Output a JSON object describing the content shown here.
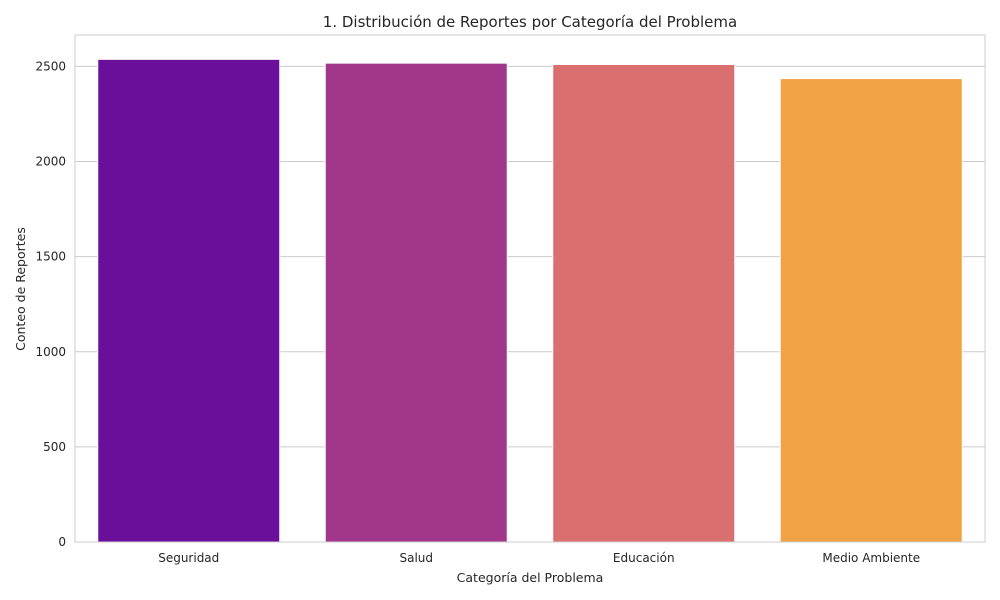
{
  "chart_data": {
    "type": "bar",
    "title": "1. Distribución de Reportes por Categoría del Problema",
    "xlabel": "Categoría del Problema",
    "ylabel": "Conteo de Reportes",
    "categories": [
      "Seguridad",
      "Salud",
      "Educación",
      "Medio Ambiente"
    ],
    "values": [
      2537,
      2517,
      2510,
      2436
    ],
    "colors": [
      "#6a0f9a",
      "#a2368a",
      "#d96f6f",
      "#f0a244"
    ],
    "yticks": [
      0,
      500,
      1000,
      1500,
      2000,
      2500
    ],
    "ylim": [
      0,
      2665
    ],
    "grid": true,
    "legend": false
  }
}
